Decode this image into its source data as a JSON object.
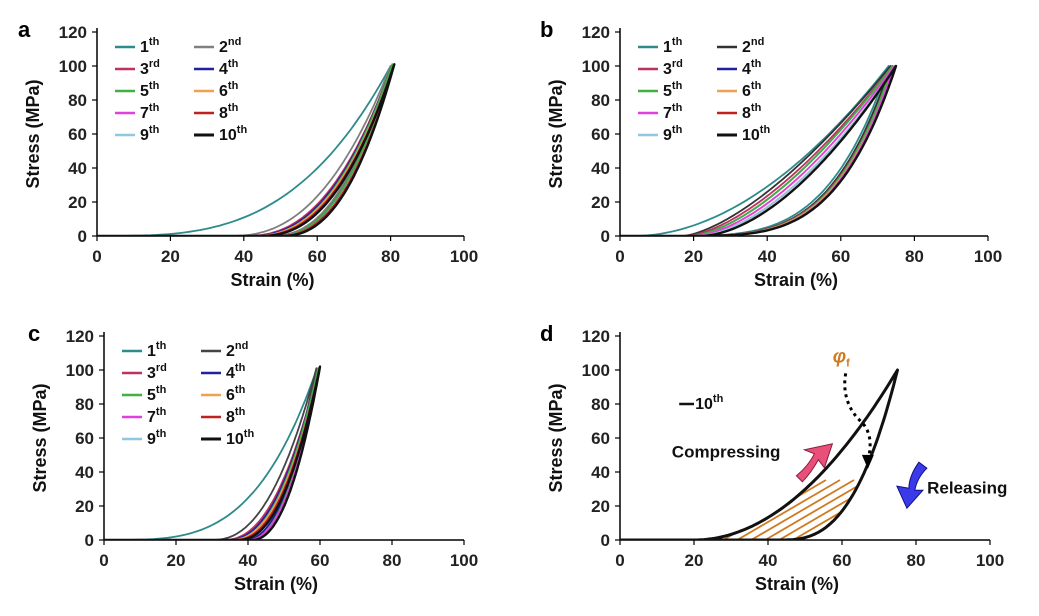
{
  "panels": [
    {
      "label": "a",
      "xlabel": "Strain (%)",
      "ylabel": "Stress (MPa)",
      "xticks": [
        "0",
        "20",
        "40",
        "60",
        "80",
        "100"
      ],
      "yticks": [
        "0",
        "20",
        "40",
        "60",
        "80",
        "100",
        "120"
      ],
      "legend": [
        {
          "num": "1",
          "sup": "th"
        },
        {
          "num": "2",
          "sup": "nd"
        },
        {
          "num": "3",
          "sup": "rd"
        },
        {
          "num": "4",
          "sup": "th"
        },
        {
          "num": "5",
          "sup": "th"
        },
        {
          "num": "6",
          "sup": "th"
        },
        {
          "num": "7",
          "sup": "th"
        },
        {
          "num": "8",
          "sup": "th"
        },
        {
          "num": "9",
          "sup": "th"
        },
        {
          "num": "10",
          "sup": "th"
        }
      ]
    },
    {
      "label": "b",
      "xlabel": "Strain (%)",
      "ylabel": "Stress (MPa)",
      "xticks": [
        "0",
        "20",
        "40",
        "60",
        "80",
        "100"
      ],
      "yticks": [
        "0",
        "20",
        "40",
        "60",
        "80",
        "100",
        "120"
      ],
      "legend": [
        {
          "num": "1",
          "sup": "th"
        },
        {
          "num": "2",
          "sup": "nd"
        },
        {
          "num": "3",
          "sup": "rd"
        },
        {
          "num": "4",
          "sup": "th"
        },
        {
          "num": "5",
          "sup": "th"
        },
        {
          "num": "6",
          "sup": "th"
        },
        {
          "num": "7",
          "sup": "th"
        },
        {
          "num": "8",
          "sup": "th"
        },
        {
          "num": "9",
          "sup": "th"
        },
        {
          "num": "10",
          "sup": "th"
        }
      ]
    },
    {
      "label": "c",
      "xlabel": "Strain (%)",
      "ylabel": "Stress (MPa)",
      "xticks": [
        "0",
        "20",
        "40",
        "60",
        "80",
        "100"
      ],
      "yticks": [
        "0",
        "20",
        "40",
        "60",
        "80",
        "100",
        "120"
      ],
      "legend": [
        {
          "num": "1",
          "sup": "th"
        },
        {
          "num": "2",
          "sup": "nd"
        },
        {
          "num": "3",
          "sup": "rd"
        },
        {
          "num": "4",
          "sup": "th"
        },
        {
          "num": "5",
          "sup": "th"
        },
        {
          "num": "6",
          "sup": "th"
        },
        {
          "num": "7",
          "sup": "th"
        },
        {
          "num": "8",
          "sup": "th"
        },
        {
          "num": "9",
          "sup": "th"
        },
        {
          "num": "10",
          "sup": "th"
        }
      ]
    },
    {
      "label": "d",
      "xlabel": "Strain (%)",
      "ylabel": "Stress (MPa)",
      "xticks": [
        "0",
        "20",
        "40",
        "60",
        "80",
        "100"
      ],
      "yticks": [
        "0",
        "20",
        "40",
        "60",
        "80",
        "100",
        "120"
      ],
      "legend": [
        {
          "num": "10",
          "sup": "th"
        }
      ],
      "annotations": {
        "compressing": "Compressing",
        "releasing": "Releasing",
        "phi": "φ",
        "phi_sub": "f"
      }
    }
  ],
  "chart_data": [
    {
      "panel": "a",
      "type": "line",
      "xlim": [
        0,
        100
      ],
      "ylim": [
        0,
        120
      ],
      "xlabel": "Strain (%)",
      "ylabel": "Stress (MPa)",
      "series": [
        {
          "name": "1th",
          "color": "#2e8b8b",
          "peak_strain": 80,
          "peak_stress": 100,
          "load_start": 0,
          "unload_start": 46,
          "load_exp": 3.2,
          "unload_exp": 2.6
        },
        {
          "name": "2nd",
          "color": "#808080",
          "peak_strain": 80,
          "peak_stress": 100,
          "load_start": 36,
          "unload_start": 47,
          "load_exp": 2.4,
          "unload_exp": 2.4
        },
        {
          "name": "3rd",
          "color": "#c03060",
          "peak_strain": 80.5,
          "peak_stress": 101,
          "load_start": 40,
          "unload_start": 48,
          "load_exp": 2.4,
          "unload_exp": 2.4
        },
        {
          "name": "4th",
          "color": "#2020a0",
          "peak_strain": 80.5,
          "peak_stress": 101,
          "load_start": 41,
          "unload_start": 48,
          "load_exp": 2.4,
          "unload_exp": 2.4
        },
        {
          "name": "5th",
          "color": "#40b040",
          "peak_strain": 80.5,
          "peak_stress": 101,
          "load_start": 42,
          "unload_start": 48,
          "load_exp": 2.4,
          "unload_exp": 2.4
        },
        {
          "name": "6th",
          "color": "#f0a050",
          "peak_strain": 81,
          "peak_stress": 101,
          "load_start": 42,
          "unload_start": 49,
          "load_exp": 2.4,
          "unload_exp": 2.4
        },
        {
          "name": "7th",
          "color": "#e040e0",
          "peak_strain": 81,
          "peak_stress": 101,
          "load_start": 43,
          "unload_start": 49,
          "load_exp": 2.4,
          "unload_exp": 2.4
        },
        {
          "name": "8th",
          "color": "#c02020",
          "peak_strain": 81,
          "peak_stress": 101,
          "load_start": 43,
          "unload_start": 49,
          "load_exp": 2.4,
          "unload_exp": 2.4
        },
        {
          "name": "9th",
          "color": "#90c8e0",
          "peak_strain": 81,
          "peak_stress": 101,
          "load_start": 44,
          "unload_start": 50,
          "load_exp": 2.4,
          "unload_exp": 2.4
        },
        {
          "name": "10th",
          "color": "#111111",
          "peak_strain": 81,
          "peak_stress": 101,
          "load_start": 44,
          "unload_start": 50,
          "load_exp": 2.4,
          "unload_exp": 2.4
        }
      ]
    },
    {
      "panel": "b",
      "type": "line",
      "xlim": [
        0,
        100
      ],
      "ylim": [
        0,
        120
      ],
      "xlabel": "Strain (%)",
      "ylabel": "Stress (MPa)",
      "series": [
        {
          "name": "1th",
          "color": "#2e8b8b",
          "peak_strain": 73,
          "peak_stress": 100,
          "load_start": 4,
          "unload_start": 10,
          "load_exp": 1.9,
          "unload_exp": 4.0
        },
        {
          "name": "2nd",
          "color": "#333333",
          "peak_strain": 73.5,
          "peak_stress": 100,
          "load_start": 17,
          "unload_start": 12,
          "load_exp": 1.5,
          "unload_exp": 4.0
        },
        {
          "name": "3rd",
          "color": "#c03060",
          "peak_strain": 74,
          "peak_stress": 100,
          "load_start": 18,
          "unload_start": 12,
          "load_exp": 1.55,
          "unload_exp": 4.0
        },
        {
          "name": "4th",
          "color": "#2020a0",
          "peak_strain": 74,
          "peak_stress": 100,
          "load_start": 19,
          "unload_start": 13,
          "load_exp": 1.6,
          "unload_exp": 4.0
        },
        {
          "name": "5th",
          "color": "#40b040",
          "peak_strain": 74,
          "peak_stress": 100,
          "load_start": 19,
          "unload_start": 13,
          "load_exp": 1.6,
          "unload_exp": 4.0
        },
        {
          "name": "6th",
          "color": "#f0a050",
          "peak_strain": 74.5,
          "peak_stress": 100,
          "load_start": 20,
          "unload_start": 13,
          "load_exp": 1.65,
          "unload_exp": 4.0
        },
        {
          "name": "7th",
          "color": "#e040e0",
          "peak_strain": 74.5,
          "peak_stress": 100,
          "load_start": 20,
          "unload_start": 14,
          "load_exp": 1.65,
          "unload_exp": 4.0
        },
        {
          "name": "8th",
          "color": "#c02020",
          "peak_strain": 75,
          "peak_stress": 100,
          "load_start": 21,
          "unload_start": 14,
          "load_exp": 1.7,
          "unload_exp": 4.0
        },
        {
          "name": "9th",
          "color": "#90c8e0",
          "peak_strain": 75,
          "peak_stress": 100,
          "load_start": 21,
          "unload_start": 14,
          "load_exp": 1.7,
          "unload_exp": 4.0
        },
        {
          "name": "10th",
          "color": "#111111",
          "peak_strain": 75,
          "peak_stress": 100,
          "load_start": 22,
          "unload_start": 14,
          "load_exp": 1.75,
          "unload_exp": 4.0
        }
      ]
    },
    {
      "panel": "c",
      "type": "line",
      "xlim": [
        0,
        100
      ],
      "ylim": [
        0,
        120
      ],
      "xlabel": "Strain (%)",
      "ylabel": "Stress (MPa)",
      "series": [
        {
          "name": "1th",
          "color": "#2e8b8b",
          "peak_strain": 59,
          "peak_stress": 100,
          "load_start": 0,
          "unload_start": 37,
          "load_exp": 3.6,
          "unload_exp": 2.2
        },
        {
          "name": "2nd",
          "color": "#444444",
          "peak_strain": 59,
          "peak_stress": 101,
          "load_start": 30,
          "unload_start": 38,
          "load_exp": 2.3,
          "unload_exp": 2.2
        },
        {
          "name": "3rd",
          "color": "#c03060",
          "peak_strain": 59.5,
          "peak_stress": 101,
          "load_start": 33,
          "unload_start": 39,
          "load_exp": 2.3,
          "unload_exp": 2.2
        },
        {
          "name": "4th",
          "color": "#2020a0",
          "peak_strain": 59.5,
          "peak_stress": 101,
          "load_start": 34,
          "unload_start": 39,
          "load_exp": 2.3,
          "unload_exp": 2.2
        },
        {
          "name": "5th",
          "color": "#40b040",
          "peak_strain": 59.5,
          "peak_stress": 101,
          "load_start": 35,
          "unload_start": 40,
          "load_exp": 2.3,
          "unload_exp": 2.2
        },
        {
          "name": "6th",
          "color": "#f0a050",
          "peak_strain": 60,
          "peak_stress": 101,
          "load_start": 35,
          "unload_start": 40,
          "load_exp": 2.3,
          "unload_exp": 2.2
        },
        {
          "name": "7th",
          "color": "#e040e0",
          "peak_strain": 60,
          "peak_stress": 102,
          "load_start": 36,
          "unload_start": 40,
          "load_exp": 2.3,
          "unload_exp": 2.2
        },
        {
          "name": "8th",
          "color": "#c02020",
          "peak_strain": 60,
          "peak_stress": 102,
          "load_start": 36,
          "unload_start": 41,
          "load_exp": 2.3,
          "unload_exp": 2.2
        },
        {
          "name": "9th",
          "color": "#90c8e0",
          "peak_strain": 60,
          "peak_stress": 102,
          "load_start": 37,
          "unload_start": 41,
          "load_exp": 2.3,
          "unload_exp": 2.2
        },
        {
          "name": "10th",
          "color": "#111111",
          "peak_strain": 60,
          "peak_stress": 102,
          "load_start": 37,
          "unload_start": 41,
          "load_exp": 2.3,
          "unload_exp": 2.2
        }
      ]
    },
    {
      "panel": "d",
      "type": "line",
      "xlim": [
        0,
        100
      ],
      "ylim": [
        0,
        120
      ],
      "xlabel": "Strain (%)",
      "ylabel": "Stress (MPa)",
      "series": [
        {
          "name": "10th",
          "color": "#111111",
          "peak_strain": 75,
          "peak_stress": 100,
          "load_start": 20,
          "unload_start": 43,
          "load_exp": 2.0,
          "unload_exp": 2.8
        }
      ],
      "hatch_color": "#d07a20",
      "annotations": [
        "Compressing",
        "Releasing",
        "φf"
      ]
    }
  ]
}
